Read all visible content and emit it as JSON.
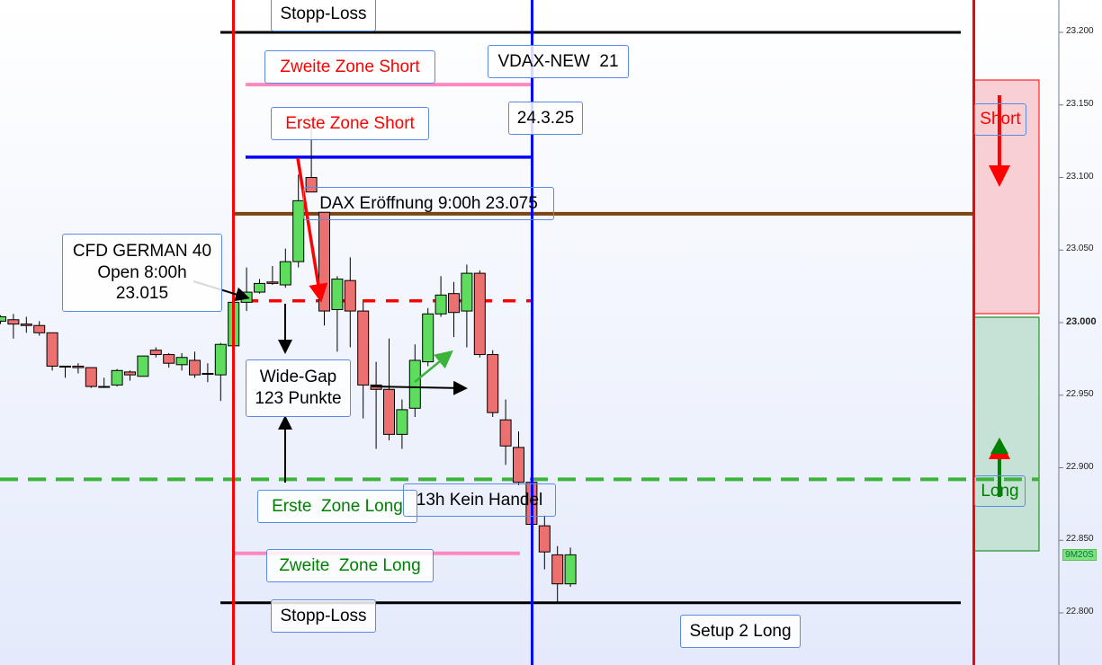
{
  "chart_data": {
    "type": "candlestick",
    "instrument_label": "CFD GERMAN 40",
    "ylim": [
      22770,
      23215
    ],
    "y_ticks": [
      "23.200",
      "23.150",
      "23.100",
      "23.050",
      "23.000",
      "22.950",
      "22.900",
      "22.850",
      "22.800"
    ],
    "y_tick_values": [
      23200,
      23150,
      23100,
      23050,
      23000,
      22950,
      22900,
      22850,
      22800
    ],
    "grid": false,
    "candle_colors": {
      "up": "#5ddc5d",
      "down": "#ec7070"
    },
    "candles_ohlc": [
      [
        23001,
        23005,
        22999,
        23004
      ],
      [
        23002,
        23006,
        22989,
        22999
      ],
      [
        22999,
        23004,
        22993,
        22998
      ],
      [
        22998,
        23001,
        22991,
        22993
      ],
      [
        22993,
        22993,
        22967,
        22970
      ],
      [
        22970,
        22970,
        22962,
        22970
      ],
      [
        22970,
        22972,
        22965,
        22969
      ],
      [
        22969,
        22969,
        22955,
        22956
      ],
      [
        22956,
        22962,
        22955,
        22956
      ],
      [
        22957,
        22968,
        22956,
        22967
      ],
      [
        22966,
        22967,
        22960,
        22964
      ],
      [
        22963,
        22977,
        22963,
        22977
      ],
      [
        22981,
        22983,
        22976,
        22978
      ],
      [
        22978,
        22979,
        22969,
        22972
      ],
      [
        22971,
        22979,
        22967,
        22976
      ],
      [
        22974,
        22980,
        22962,
        22964
      ],
      [
        22965,
        22972,
        22959,
        22965
      ],
      [
        22964,
        22986,
        22946,
        22985
      ],
      [
        22984,
        23014,
        22984,
        23014
      ],
      [
        23014,
        23038,
        23008,
        23021
      ],
      [
        23021,
        23030,
        23020,
        23027
      ],
      [
        23028,
        23039,
        23026,
        23027
      ],
      [
        23026,
        23051,
        23024,
        23042
      ],
      [
        23042,
        23102,
        23038,
        23084
      ],
      [
        23100,
        23136,
        23090,
        23090
      ],
      [
        23076,
        23076,
        22998,
        23008
      ],
      [
        23009,
        23032,
        22980,
        23030
      ],
      [
        23029,
        23045,
        22983,
        23008
      ],
      [
        23008,
        23014,
        22934,
        22957
      ],
      [
        22957,
        22973,
        22913,
        22954
      ],
      [
        22954,
        22989,
        22919,
        22923
      ],
      [
        22923,
        22947,
        22913,
        22940
      ],
      [
        22941,
        22985,
        22935,
        22974
      ],
      [
        22973,
        23010,
        22970,
        23006
      ],
      [
        23006,
        23032,
        23004,
        23019
      ],
      [
        23020,
        23028,
        22990,
        23007
      ],
      [
        23008,
        23040,
        22983,
        23034
      ],
      [
        23034,
        23036,
        22976,
        22978
      ],
      [
        22978,
        22981,
        22935,
        22938
      ],
      [
        22933,
        22947,
        22902,
        22915
      ],
      [
        22914,
        22925,
        22888,
        22890
      ],
      [
        22890,
        22890,
        22861,
        22861
      ],
      [
        22860,
        22867,
        22830,
        22842
      ],
      [
        22840,
        22846,
        22807,
        22820
      ],
      [
        22820,
        22845,
        22818,
        22840
      ]
    ],
    "levels": {
      "stop_loss_short": 23200,
      "zweite_zone_short": 23164,
      "erste_zone_short": 23114,
      "dax_open": 23075,
      "cfd_open": 23015,
      "erste_zone_long": 22892,
      "zweite_zone_long": 22841,
      "stop_loss_long": 22807
    },
    "zones": {
      "short": [
        23168,
        23006
      ],
      "long": [
        23004,
        22842
      ]
    },
    "timer": "9M20S"
  },
  "annotations": {
    "stopp_loss_top": "Stopp-Loss",
    "zweite_zone_short": "Zweite Zone Short",
    "vdax": "VDAX-NEW  21",
    "erste_zone_short": "Erste Zone Short",
    "date": "24.3.25",
    "dax_open": "DAX Eröffnung 9:00h 23.075",
    "cfd_open": "CFD GERMAN 40\nOpen 8:00h\n23.015",
    "wide_gap": "Wide-Gap\n123 Punkte",
    "erste_zone_long": "Erste  Zone Long",
    "kein_handel": "13h Kein Handel",
    "zweite_zone_long": "Zweite  Zone Long",
    "stopp_loss_bottom": "Stopp-Loss",
    "setup": "Setup 2 Long",
    "short": "Short",
    "long": "Long"
  },
  "colors": {
    "session_line": "#ff0000",
    "date_line": "#0000ff",
    "stop_line": "#000000",
    "zweite_zone": "#ff88c0",
    "erste_zone_short": "#0000ff",
    "dax_open": "#7a4512",
    "cfd_open": "#ff0000",
    "erste_zone_long": "#3cb43c"
  }
}
